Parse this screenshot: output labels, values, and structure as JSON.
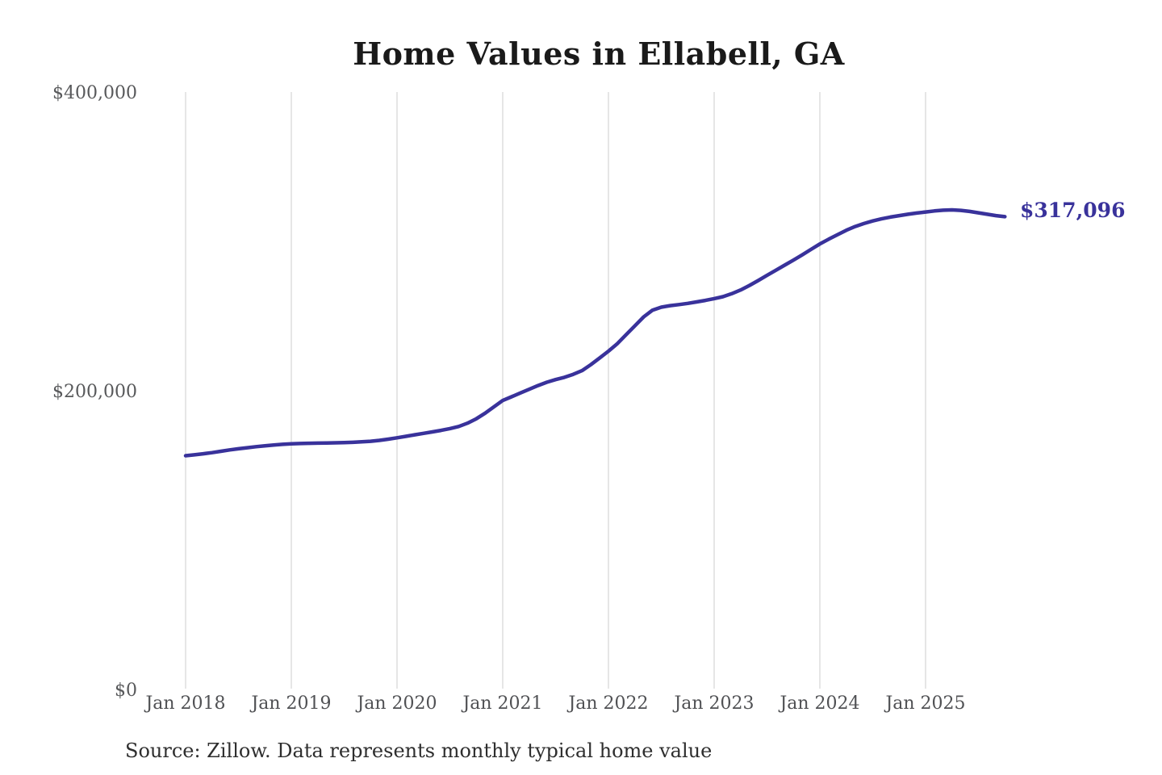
{
  "title": "Home Values in Ellabell, GA",
  "end_label": "$317,096",
  "source": "Source: Zillow. Data represents monthly typical home value",
  "y_axis": {
    "labels": [
      "$400,000",
      "$200,000",
      "$0"
    ],
    "values": [
      400000,
      200000,
      0
    ]
  },
  "x_axis": {
    "labels": [
      "Jan 2018",
      "Jan 2019",
      "Jan 2020",
      "Jan 2021",
      "Jan 2022",
      "Jan 2023",
      "Jan 2024",
      "Jan 2025"
    ]
  },
  "colors": {
    "line": "#39329b",
    "grid": "#cccccc",
    "title_text": "#1a1a1a",
    "axis_text": "#58595b",
    "source_text": "#2e2e2e"
  },
  "chart_data": {
    "type": "line",
    "title": "Home Values in Ellabell, GA",
    "series_name": "Monthly typical home value",
    "xlabel": "",
    "ylabel": "",
    "ylim": [
      0,
      400000
    ],
    "y_ticks": [
      0,
      200000,
      400000
    ],
    "grid": "vertical-only",
    "legend": false,
    "latest_value": 317096,
    "x": [
      "2018-01",
      "2018-02",
      "2018-03",
      "2018-04",
      "2018-05",
      "2018-06",
      "2018-07",
      "2018-08",
      "2018-09",
      "2018-10",
      "2018-11",
      "2018-12",
      "2019-01",
      "2019-02",
      "2019-03",
      "2019-04",
      "2019-05",
      "2019-06",
      "2019-07",
      "2019-08",
      "2019-09",
      "2019-10",
      "2019-11",
      "2019-12",
      "2020-01",
      "2020-02",
      "2020-03",
      "2020-04",
      "2020-05",
      "2020-06",
      "2020-07",
      "2020-08",
      "2020-09",
      "2020-10",
      "2020-11",
      "2020-12",
      "2021-01",
      "2021-02",
      "2021-03",
      "2021-04",
      "2021-05",
      "2021-06",
      "2021-07",
      "2021-08",
      "2021-09",
      "2021-10",
      "2021-11",
      "2021-12",
      "2022-01",
      "2022-02",
      "2022-03",
      "2022-04",
      "2022-05",
      "2022-06",
      "2022-07",
      "2022-08",
      "2022-09",
      "2022-10",
      "2022-11",
      "2022-12",
      "2023-01",
      "2023-02",
      "2023-03",
      "2023-04",
      "2023-05",
      "2023-06",
      "2023-07",
      "2023-08",
      "2023-09",
      "2023-10",
      "2023-11",
      "2023-12",
      "2024-01",
      "2024-02",
      "2024-03",
      "2024-04",
      "2024-05",
      "2024-06",
      "2024-07",
      "2024-08",
      "2024-09",
      "2024-10",
      "2024-11",
      "2024-12",
      "2025-01",
      "2025-02",
      "2025-03",
      "2025-04",
      "2025-05",
      "2025-06",
      "2025-07",
      "2025-08",
      "2025-09",
      "2025-10"
    ],
    "values": [
      157000,
      157600,
      158300,
      159100,
      160000,
      160900,
      161700,
      162400,
      163100,
      163700,
      164200,
      164650,
      165000,
      165200,
      165350,
      165450,
      165550,
      165650,
      165800,
      166000,
      166300,
      166700,
      167300,
      168100,
      169000,
      170000,
      171000,
      172000,
      173000,
      174000,
      175200,
      176600,
      178800,
      181800,
      185500,
      189800,
      194000,
      196500,
      199000,
      201500,
      204000,
      206200,
      208000,
      209500,
      211500,
      214000,
      218000,
      222500,
      227000,
      232000,
      238000,
      244000,
      250000,
      254500,
      256500,
      257500,
      258200,
      259000,
      260000,
      261000,
      262200,
      263500,
      265500,
      268000,
      271000,
      274300,
      277800,
      281200,
      284600,
      288000,
      291500,
      295200,
      298800,
      302000,
      305000,
      308000,
      310500,
      312500,
      314200,
      315600,
      316800,
      317800,
      318700,
      319500,
      320200,
      320900,
      321400,
      321600,
      321300,
      320600,
      319700,
      318700,
      317800,
      317096
    ]
  }
}
